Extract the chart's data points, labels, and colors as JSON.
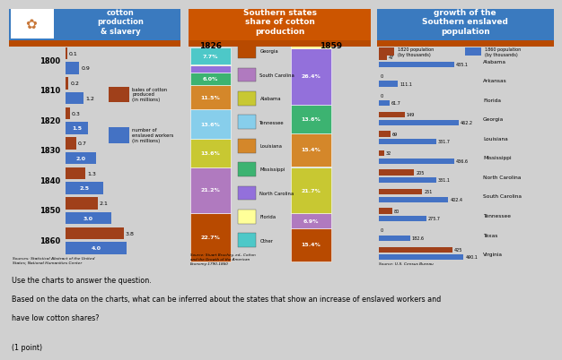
{
  "panel1_title": "cotton\nproduction\n& slavery",
  "panel2_title": "Southern states\nshare of cotton\nproduction",
  "panel3_title": "growth of the\nSouthern enslaved\npopulation",
  "header_bg1": "#3a7abf",
  "header_bg2": "#cc5500",
  "header_bg3": "#3a7abf",
  "header_accent": "#b84a00",
  "years_left": [
    "1800",
    "1810",
    "1820",
    "1830",
    "1840",
    "1850",
    "1860"
  ],
  "cotton_bales": [
    0.1,
    0.2,
    0.3,
    0.7,
    1.3,
    2.1,
    3.8
  ],
  "enslaved_workers": [
    0.9,
    1.2,
    1.5,
    2.0,
    2.5,
    3.0,
    4.0
  ],
  "bar_color_cotton": "#a0401a",
  "bar_color_enslaved": "#4472c4",
  "stacked1826_labels": [
    "Georgia",
    "South Carolina",
    "Alabama",
    "Tennessee",
    "Louisiana",
    "Mississippi",
    "North Carolina",
    "Florida",
    "Other"
  ],
  "stacked1826_values": [
    22.7,
    21.2,
    13.6,
    13.6,
    11.5,
    6.0,
    3.1,
    0.6,
    7.7
  ],
  "stacked1826_colors": [
    "#b84a00",
    "#b07abf",
    "#c8c832",
    "#87ceeb",
    "#d4872a",
    "#3cb371",
    "#9370db",
    "#ffff99",
    "#4dc8c8"
  ],
  "stacked1859_values": [
    15.4,
    6.9,
    21.7,
    0.5,
    15.4,
    13.6,
    26.4,
    1.5,
    3.2
  ],
  "stacked1859_colors": [
    "#b84a00",
    "#b07abf",
    "#c8c832",
    "#87ceeb",
    "#d4872a",
    "#3cb371",
    "#9370db",
    "#ffff99",
    "#4dc8c8"
  ],
  "pop_states": [
    "Alabama",
    "Arkansas",
    "Florida",
    "Georgia",
    "Louisiana",
    "Mississippi",
    "North Carolina",
    "South Carolina",
    "Tennessee",
    "Texas",
    "Virginia"
  ],
  "pop_1820": [
    47.5,
    0,
    0,
    149.7,
    69,
    32.8,
    205,
    251.8,
    80.1,
    0,
    425.2
  ],
  "pop_1860": [
    435.1,
    111.1,
    61.7,
    462.2,
    331.7,
    436.6,
    331.1,
    402.4,
    275.7,
    182.6,
    490.1
  ],
  "pop_color_1820": "#a0401a",
  "pop_color_1860": "#4472c4",
  "source1": "Sources: Statistical Abstract of the United\nStates; National Humanities Center",
  "source2": "Source: Stuart Bruchey, ed., Cotton\nand the Growth of the American\nEconomy:1790-1860",
  "source3": "Source: U.S. Census Bureau",
  "question_line1": "Use the charts to answer the question.",
  "question_line2": "Based on the data on the charts, what can be inferred about the states that show an increase of enslaved workers and",
  "question_line3": "have low cotton shares?",
  "question_line4": "(1 point)",
  "bg_color": "#d0d0d0",
  "panel_bg": "#e8e8e8"
}
